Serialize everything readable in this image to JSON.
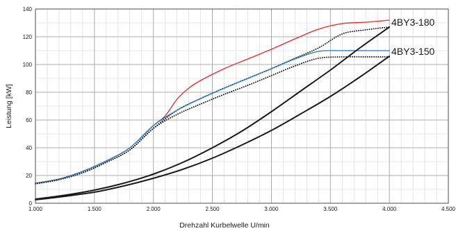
{
  "chart_data": {
    "type": "line",
    "title": "",
    "xlabel": "Drehzahl Kurbelwelle U/min",
    "ylabel": "Leistung [kW]",
    "xlim": [
      1000,
      4500
    ],
    "ylim": [
      0,
      140
    ],
    "x_ticks": [
      1000,
      1500,
      2000,
      2500,
      3000,
      3500,
      4000,
      4500
    ],
    "x_tick_labels": [
      "1.000",
      "1.500",
      "2.000",
      "2.500",
      "3.000",
      "3.500",
      "4.000",
      "4.500"
    ],
    "y_ticks": [
      0,
      20,
      40,
      60,
      80,
      100,
      120,
      140
    ],
    "y_tick_labels": [
      "0",
      "20",
      "40",
      "60",
      "80",
      "100",
      "120",
      "140"
    ],
    "grid": true,
    "series": [
      {
        "name": "4BY3-180",
        "color": "#e8262a",
        "style": "solid",
        "x": [
          1000,
          1200,
          1400,
          1600,
          1800,
          2000,
          2100,
          2200,
          2300,
          2400,
          2600,
          2800,
          3000,
          3200,
          3400,
          3600,
          3800,
          4000
        ],
        "y": [
          14.5,
          17.5,
          23,
          30.5,
          40,
          56,
          63,
          75,
          83,
          88.5,
          97,
          104,
          111,
          118.5,
          125.5,
          129.5,
          130.5,
          132
        ]
      },
      {
        "color": "#1a1a1a",
        "style": "dotted",
        "x": [
          1000,
          1200,
          1400,
          1600,
          1800,
          2000,
          2200,
          2400,
          2600,
          2800,
          3000,
          3200,
          3400,
          3600,
          3800,
          4000
        ],
        "y": [
          14,
          17,
          22,
          29.5,
          38.5,
          54,
          67,
          75.5,
          83,
          90,
          97,
          104.5,
          112,
          122,
          125,
          127
        ]
      },
      {
        "name": "4BY3-150",
        "color": "#1f7bbf",
        "style": "solid",
        "x": [
          1000,
          1200,
          1400,
          1600,
          1800,
          2000,
          2200,
          2400,
          2600,
          2800,
          3000,
          3200,
          3400,
          3600,
          3800,
          4000
        ],
        "y": [
          14.5,
          17.5,
          23,
          30.5,
          40,
          56,
          67,
          75.5,
          83,
          90,
          97,
          104,
          109.5,
          110,
          110,
          110
        ]
      },
      {
        "color": "#1a1a1a",
        "style": "dotted",
        "x": [
          1000,
          1200,
          1400,
          1600,
          1800,
          2000,
          2200,
          2400,
          2600,
          2800,
          3000,
          3200,
          3400,
          3600,
          3800,
          4000
        ],
        "y": [
          14,
          17,
          22,
          29.5,
          38.5,
          54,
          64,
          71.5,
          78.5,
          85,
          92,
          99,
          104.5,
          105.5,
          105.5,
          105.5
        ]
      },
      {
        "color": "#1a1a1a",
        "style": "solid",
        "x": [
          1000,
          1250,
          1500,
          1750,
          2000,
          2250,
          2500,
          2750,
          3000,
          3250,
          3500,
          3750,
          4000
        ],
        "y": [
          3,
          5.8,
          9.5,
          14.5,
          21,
          29.5,
          40,
          52,
          66,
          81,
          96,
          112,
          127
        ]
      },
      {
        "color": "#1a1a1a",
        "style": "solid",
        "x": [
          1000,
          1250,
          1500,
          1750,
          2000,
          2250,
          2500,
          2750,
          3000,
          3250,
          3500,
          3750,
          4000
        ],
        "y": [
          2.5,
          5,
          8,
          12.5,
          18,
          24.5,
          32.5,
          42,
          52.5,
          64.5,
          77,
          91,
          106
        ]
      }
    ],
    "series_labels": [
      "4BY3-180",
      "4BY3-150"
    ]
  }
}
